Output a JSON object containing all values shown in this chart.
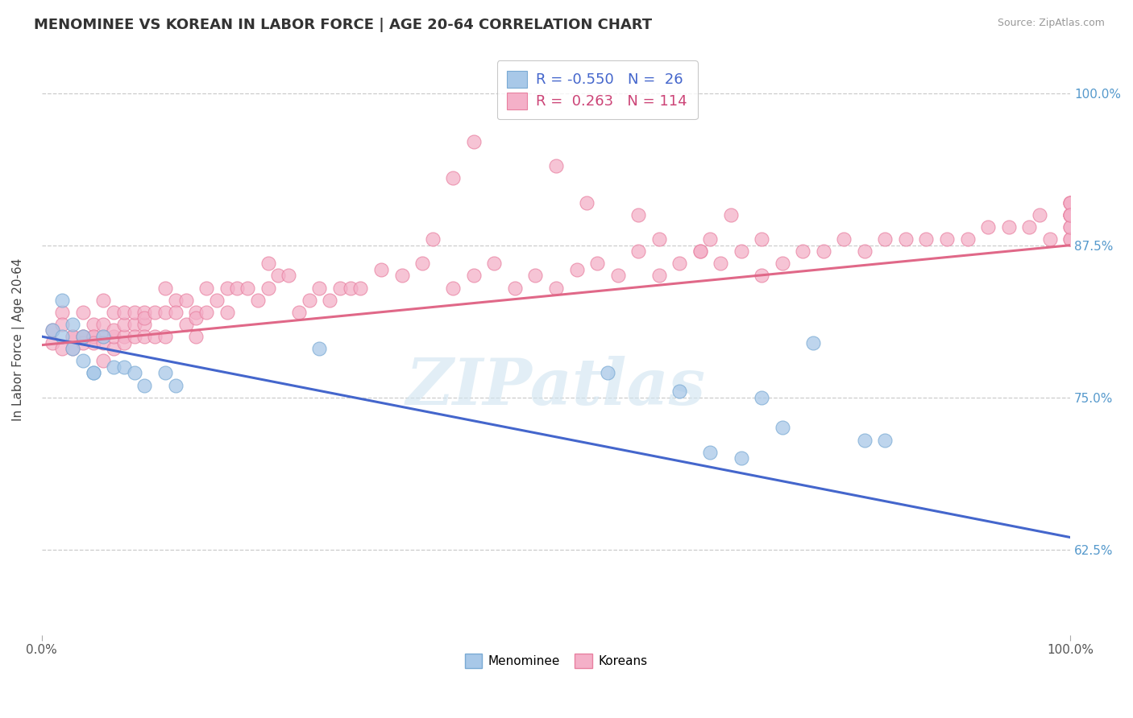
{
  "title": "MENOMINEE VS KOREAN IN LABOR FORCE | AGE 20-64 CORRELATION CHART",
  "source": "Source: ZipAtlas.com",
  "ylabel": "In Labor Force | Age 20-64",
  "ytick_labels": [
    "62.5%",
    "75.0%",
    "87.5%",
    "100.0%"
  ],
  "ytick_values": [
    0.625,
    0.75,
    0.875,
    1.0
  ],
  "xlim": [
    0.0,
    1.0
  ],
  "ylim": [
    0.555,
    1.04
  ],
  "watermark": "ZIPatlas",
  "menominee_color": "#a8c8e8",
  "korean_color": "#f4b0c8",
  "menominee_edge": "#7aaad4",
  "korean_edge": "#e880a0",
  "line_color_menominee": "#4466cc",
  "line_color_korean": "#e06888",
  "background_color": "#ffffff",
  "grid_color": "#cccccc",
  "title_fontsize": 13,
  "axis_label_fontsize": 11,
  "tick_fontsize": 11,
  "men_line_x0": 0.0,
  "men_line_y0": 0.8,
  "men_line_x1": 1.0,
  "men_line_y1": 0.635,
  "kor_line_x0": 0.0,
  "kor_line_y0": 0.793,
  "kor_line_x1": 1.0,
  "kor_line_y1": 0.875,
  "menominee_x": [
    0.01,
    0.02,
    0.02,
    0.03,
    0.03,
    0.04,
    0.04,
    0.05,
    0.05,
    0.06,
    0.07,
    0.08,
    0.09,
    0.1,
    0.12,
    0.13,
    0.27,
    0.55,
    0.62,
    0.65,
    0.68,
    0.7,
    0.72,
    0.75,
    0.8,
    0.82
  ],
  "menominee_y": [
    0.805,
    0.83,
    0.8,
    0.79,
    0.81,
    0.8,
    0.78,
    0.77,
    0.77,
    0.8,
    0.775,
    0.775,
    0.77,
    0.76,
    0.77,
    0.76,
    0.79,
    0.77,
    0.755,
    0.705,
    0.7,
    0.75,
    0.725,
    0.795,
    0.715,
    0.715
  ],
  "korean_x": [
    0.01,
    0.01,
    0.02,
    0.02,
    0.02,
    0.03,
    0.03,
    0.03,
    0.04,
    0.04,
    0.04,
    0.04,
    0.05,
    0.05,
    0.05,
    0.05,
    0.06,
    0.06,
    0.06,
    0.06,
    0.06,
    0.07,
    0.07,
    0.07,
    0.07,
    0.08,
    0.08,
    0.08,
    0.08,
    0.09,
    0.09,
    0.09,
    0.1,
    0.1,
    0.1,
    0.1,
    0.11,
    0.11,
    0.12,
    0.12,
    0.12,
    0.13,
    0.13,
    0.14,
    0.14,
    0.15,
    0.15,
    0.15,
    0.16,
    0.16,
    0.17,
    0.18,
    0.18,
    0.19,
    0.2,
    0.21,
    0.22,
    0.22,
    0.23,
    0.24,
    0.25,
    0.26,
    0.27,
    0.28,
    0.29,
    0.3,
    0.31,
    0.33,
    0.35,
    0.37,
    0.38,
    0.4,
    0.42,
    0.44,
    0.46,
    0.48,
    0.5,
    0.52,
    0.54,
    0.56,
    0.58,
    0.6,
    0.62,
    0.64,
    0.65,
    0.66,
    0.68,
    0.7,
    0.72,
    0.74,
    0.76,
    0.78,
    0.8,
    0.82,
    0.84,
    0.86,
    0.88,
    0.9,
    0.92,
    0.94,
    0.96,
    0.97,
    0.98,
    1.0,
    1.0,
    1.0,
    1.0,
    1.0,
    1.0,
    1.0,
    1.0,
    1.0,
    1.0,
    1.0
  ],
  "korean_y": [
    0.805,
    0.795,
    0.79,
    0.82,
    0.81,
    0.8,
    0.8,
    0.79,
    0.8,
    0.795,
    0.8,
    0.82,
    0.8,
    0.81,
    0.8,
    0.795,
    0.8,
    0.81,
    0.795,
    0.78,
    0.83,
    0.79,
    0.8,
    0.82,
    0.805,
    0.8,
    0.81,
    0.82,
    0.795,
    0.81,
    0.82,
    0.8,
    0.81,
    0.8,
    0.82,
    0.815,
    0.8,
    0.82,
    0.82,
    0.84,
    0.8,
    0.83,
    0.82,
    0.83,
    0.81,
    0.82,
    0.8,
    0.815,
    0.82,
    0.84,
    0.83,
    0.82,
    0.84,
    0.84,
    0.84,
    0.83,
    0.86,
    0.84,
    0.85,
    0.85,
    0.82,
    0.83,
    0.84,
    0.83,
    0.84,
    0.84,
    0.84,
    0.855,
    0.85,
    0.86,
    0.88,
    0.84,
    0.85,
    0.86,
    0.84,
    0.85,
    0.84,
    0.855,
    0.86,
    0.85,
    0.87,
    0.85,
    0.86,
    0.87,
    0.88,
    0.86,
    0.87,
    0.85,
    0.86,
    0.87,
    0.87,
    0.88,
    0.87,
    0.88,
    0.88,
    0.88,
    0.88,
    0.88,
    0.89,
    0.89,
    0.89,
    0.9,
    0.88,
    0.9,
    0.89,
    0.91,
    0.88,
    0.9,
    0.91,
    0.9,
    0.88,
    0.91,
    0.89,
    0.9
  ],
  "extra_korean_high_x": [
    0.4,
    0.42,
    0.5,
    0.53,
    0.58,
    0.6,
    0.64,
    0.67,
    0.7
  ],
  "extra_korean_high_y": [
    0.93,
    0.96,
    0.94,
    0.91,
    0.9,
    0.88,
    0.87,
    0.9,
    0.88
  ],
  "legend_R1": "R = -0.550",
  "legend_N1": "N =  26",
  "legend_R2": "R =  0.263",
  "legend_N2": "N = 114",
  "legend_color1": "#4466cc",
  "legend_color2": "#cc4477"
}
